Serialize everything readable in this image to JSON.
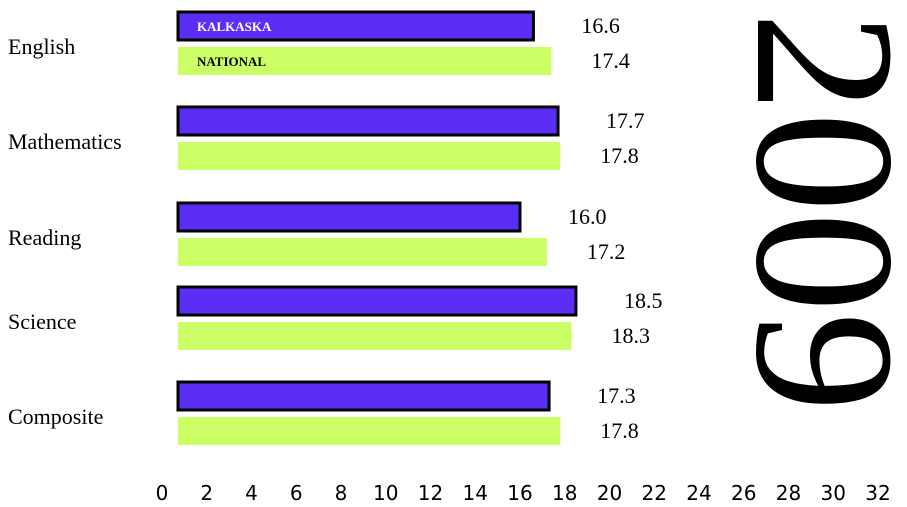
{
  "chart_data": {
    "type": "bar",
    "orientation": "horizontal",
    "categories": [
      "English",
      "Mathematics",
      "Reading",
      "Science",
      "Composite"
    ],
    "series": [
      {
        "name": "KALKASKA",
        "values": [
          16.6,
          17.7,
          16.0,
          18.5,
          17.3
        ],
        "color": "#5b2df5"
      },
      {
        "name": "NATIONAL",
        "values": [
          17.4,
          17.8,
          17.2,
          18.3,
          17.8
        ],
        "color": "#ccff66"
      }
    ],
    "value_labels": [
      [
        "16.6",
        "17.7",
        "16.0",
        "18.5",
        "17.3"
      ],
      [
        "17.4",
        "17.8",
        "17.2",
        "18.3",
        "17.8"
      ]
    ],
    "x_ticks": [
      "0",
      "2",
      "4",
      "6",
      "8",
      "10",
      "12",
      "14",
      "16",
      "18",
      "20",
      "22",
      "24",
      "26",
      "28",
      "30",
      "32"
    ],
    "xlim": [
      0,
      32
    ],
    "grid": false,
    "annotation": "2009",
    "series_tag_colors": [
      "#ffffff",
      "#000000"
    ]
  }
}
